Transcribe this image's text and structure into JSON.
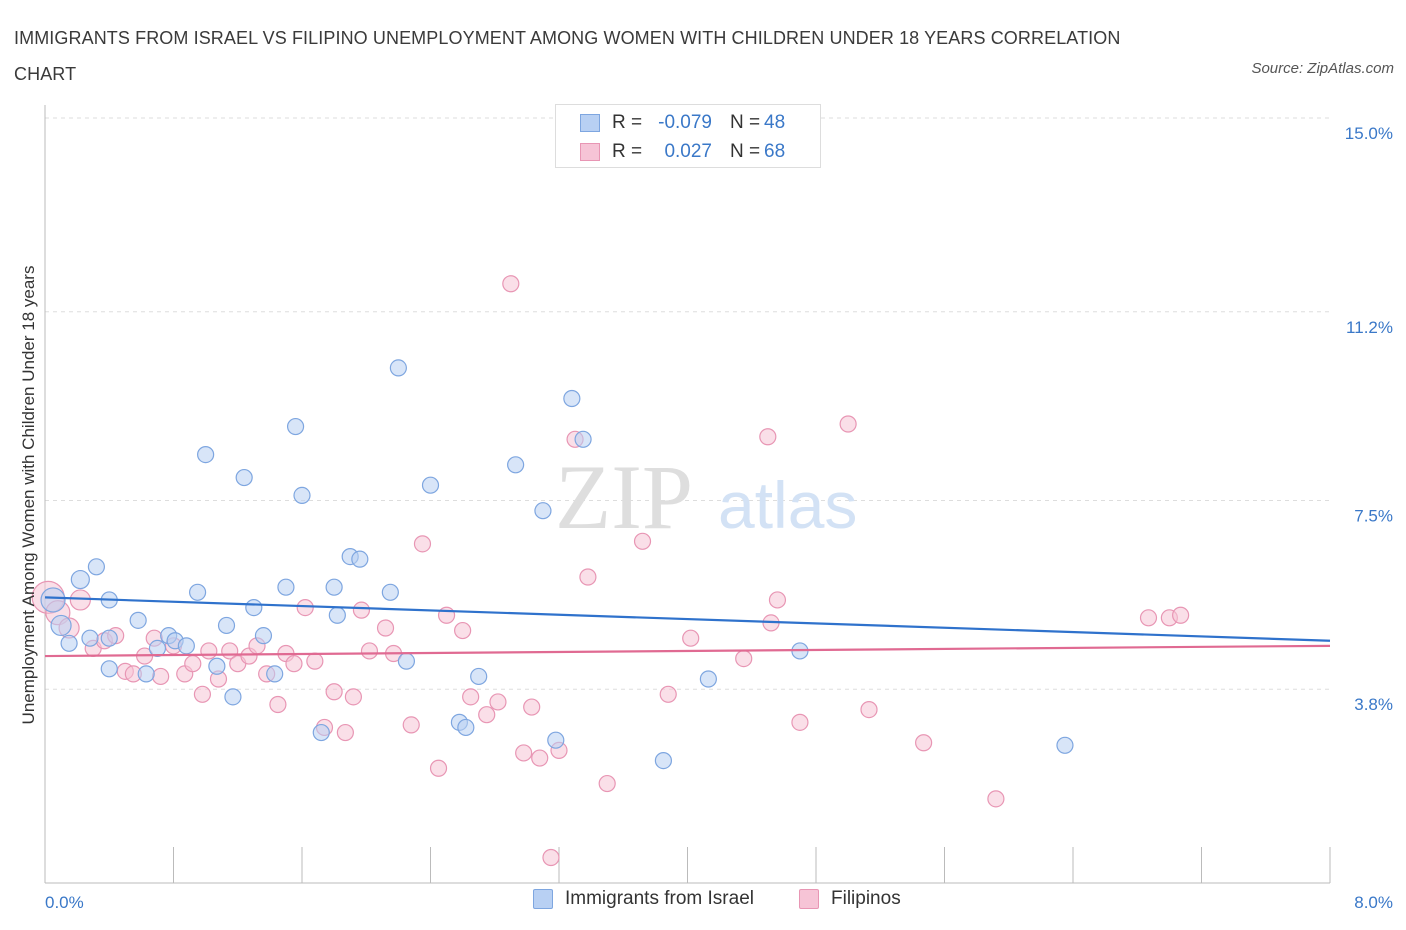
{
  "title": "IMMIGRANTS FROM ISRAEL VS FILIPINO UNEMPLOYMENT AMONG WOMEN WITH CHILDREN UNDER 18 YEARS CORRELATION CHART",
  "source": "Source: ZipAtlas.com",
  "watermark": {
    "zip": "ZIP",
    "atlas": "atlas"
  },
  "legend": {
    "rows": [
      {
        "r_label": "R =",
        "r_value": "-0.079",
        "n_label": "N =",
        "n_value": "48"
      },
      {
        "r_label": "R =",
        "r_value": "0.027",
        "n_label": "N =",
        "n_value": "68"
      }
    ]
  },
  "bottom_legend": {
    "israel": "Immigrants from Israel",
    "filipinos": "Filipinos"
  },
  "colors": {
    "israel_fill": "#b8d0f3",
    "israel_stroke": "#7ea6e0",
    "israel_line": "#2f72cc",
    "filipinos_fill": "#f6c4d6",
    "filipinos_stroke": "#e896b4",
    "filipinos_line": "#e06a92",
    "tick_text": "#3a78c8",
    "grid": "#dddddd"
  },
  "chart_data": {
    "type": "scatter",
    "title": "IMMIGRANTS FROM ISRAEL VS FILIPINO UNEMPLOYMENT AMONG WOMEN WITH CHILDREN UNDER 18 YEARS CORRELATION CHART",
    "xlabel": "",
    "ylabel": "Unemployment Among Women with Children Under 18 years",
    "xlim": [
      0,
      8.0
    ],
    "ylim": [
      0,
      15.0
    ],
    "x_tick_labels": [
      "0.0%",
      "8.0%"
    ],
    "y_ticks": [
      3.8,
      7.5,
      11.2,
      15.0
    ],
    "y_tick_labels": [
      "3.8%",
      "7.5%",
      "11.2%",
      "15.0%"
    ],
    "grid": true,
    "legend_position": "top-center",
    "series": [
      {
        "name": "Immigrants from Israel",
        "r": -0.079,
        "n": 48,
        "trend": {
          "x": [
            0,
            8.0
          ],
          "y": [
            5.6,
            4.75
          ]
        },
        "points": [
          [
            0.05,
            5.55,
            12
          ],
          [
            0.1,
            5.05,
            10
          ],
          [
            0.15,
            4.7,
            8
          ],
          [
            0.22,
            5.95,
            9
          ],
          [
            0.28,
            4.8,
            8
          ],
          [
            0.32,
            6.2,
            8
          ],
          [
            0.4,
            4.8,
            8
          ],
          [
            0.4,
            4.2,
            8
          ],
          [
            0.4,
            5.55,
            8
          ],
          [
            0.58,
            5.15,
            8
          ],
          [
            0.63,
            4.1,
            8
          ],
          [
            0.7,
            4.6,
            8
          ],
          [
            0.77,
            4.85,
            8
          ],
          [
            0.81,
            4.75,
            8
          ],
          [
            0.88,
            4.65,
            8
          ],
          [
            0.95,
            5.7,
            8
          ],
          [
            1.0,
            8.4,
            8
          ],
          [
            1.07,
            4.25,
            8
          ],
          [
            1.13,
            5.05,
            8
          ],
          [
            1.17,
            3.65,
            8
          ],
          [
            1.24,
            7.95,
            8
          ],
          [
            1.3,
            5.4,
            8
          ],
          [
            1.36,
            4.85,
            8
          ],
          [
            1.43,
            4.1,
            8
          ],
          [
            1.5,
            5.8,
            8
          ],
          [
            1.56,
            8.95,
            8
          ],
          [
            1.6,
            7.6,
            8
          ],
          [
            1.72,
            2.95,
            8
          ],
          [
            1.8,
            5.8,
            8
          ],
          [
            1.82,
            5.25,
            8
          ],
          [
            1.9,
            6.4,
            8
          ],
          [
            1.96,
            6.35,
            8
          ],
          [
            2.15,
            5.7,
            8
          ],
          [
            2.2,
            10.1,
            8
          ],
          [
            2.25,
            4.35,
            8
          ],
          [
            2.4,
            7.8,
            8
          ],
          [
            2.58,
            3.15,
            8
          ],
          [
            2.62,
            3.05,
            8
          ],
          [
            2.7,
            4.05,
            8
          ],
          [
            2.93,
            8.2,
            8
          ],
          [
            3.1,
            7.3,
            8
          ],
          [
            3.18,
            2.8,
            8
          ],
          [
            3.28,
            9.5,
            8
          ],
          [
            3.35,
            8.7,
            8
          ],
          [
            3.85,
            2.4,
            8
          ],
          [
            4.13,
            4.0,
            8
          ],
          [
            4.7,
            4.55,
            8
          ],
          [
            6.35,
            2.7,
            8
          ]
        ]
      },
      {
        "name": "Filipinos",
        "r": 0.027,
        "n": 68,
        "trend": {
          "x": [
            0,
            8.0
          ],
          "y": [
            4.45,
            4.65
          ]
        },
        "points": [
          [
            0.02,
            5.6,
            16
          ],
          [
            0.08,
            5.3,
            12
          ],
          [
            0.15,
            5.0,
            10
          ],
          [
            0.22,
            5.55,
            10
          ],
          [
            0.3,
            4.6,
            8
          ],
          [
            0.37,
            4.75,
            8
          ],
          [
            0.44,
            4.85,
            8
          ],
          [
            0.5,
            4.15,
            8
          ],
          [
            0.55,
            4.1,
            8
          ],
          [
            0.62,
            4.45,
            8
          ],
          [
            0.68,
            4.8,
            8
          ],
          [
            0.72,
            4.05,
            8
          ],
          [
            0.8,
            4.65,
            8
          ],
          [
            0.87,
            4.1,
            8
          ],
          [
            0.92,
            4.3,
            8
          ],
          [
            0.98,
            3.7,
            8
          ],
          [
            1.02,
            4.55,
            8
          ],
          [
            1.08,
            4.0,
            8
          ],
          [
            1.15,
            4.55,
            8
          ],
          [
            1.2,
            4.3,
            8
          ],
          [
            1.27,
            4.45,
            8
          ],
          [
            1.32,
            4.65,
            8
          ],
          [
            1.38,
            4.1,
            8
          ],
          [
            1.45,
            3.5,
            8
          ],
          [
            1.5,
            4.5,
            8
          ],
          [
            1.55,
            4.3,
            8
          ],
          [
            1.62,
            5.4,
            8
          ],
          [
            1.68,
            4.35,
            8
          ],
          [
            1.74,
            3.05,
            8
          ],
          [
            1.8,
            3.75,
            8
          ],
          [
            1.87,
            2.95,
            8
          ],
          [
            1.92,
            3.65,
            8
          ],
          [
            1.97,
            5.35,
            8
          ],
          [
            2.02,
            4.55,
            8
          ],
          [
            2.12,
            5.0,
            8
          ],
          [
            2.17,
            4.5,
            8
          ],
          [
            2.28,
            3.1,
            8
          ],
          [
            2.35,
            6.65,
            8
          ],
          [
            2.45,
            2.25,
            8
          ],
          [
            2.5,
            5.25,
            8
          ],
          [
            2.6,
            4.95,
            8
          ],
          [
            2.65,
            3.65,
            8
          ],
          [
            2.75,
            3.3,
            8
          ],
          [
            2.82,
            3.55,
            8
          ],
          [
            2.9,
            11.75,
            8
          ],
          [
            2.98,
            2.55,
            8
          ],
          [
            3.03,
            3.45,
            8
          ],
          [
            3.08,
            2.45,
            8
          ],
          [
            3.15,
            0.5,
            8
          ],
          [
            3.2,
            2.6,
            8
          ],
          [
            3.3,
            8.7,
            8
          ],
          [
            3.38,
            6.0,
            8
          ],
          [
            3.5,
            1.95,
            8
          ],
          [
            3.72,
            6.7,
            8
          ],
          [
            3.88,
            3.7,
            8
          ],
          [
            4.02,
            4.8,
            8
          ],
          [
            4.35,
            4.4,
            8
          ],
          [
            4.5,
            8.75,
            8
          ],
          [
            4.52,
            5.1,
            8
          ],
          [
            4.56,
            5.55,
            8
          ],
          [
            4.7,
            3.15,
            8
          ],
          [
            5.0,
            9.0,
            8
          ],
          [
            5.13,
            3.4,
            8
          ],
          [
            5.47,
            2.75,
            8
          ],
          [
            5.92,
            1.65,
            8
          ],
          [
            6.87,
            5.2,
            8
          ],
          [
            7.0,
            5.2,
            8
          ],
          [
            7.07,
            5.25,
            8
          ]
        ]
      }
    ]
  }
}
